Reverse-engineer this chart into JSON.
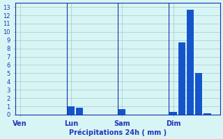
{
  "bars": [
    {
      "x": 1,
      "height": 0.0
    },
    {
      "x": 2,
      "height": 0.0
    },
    {
      "x": 3,
      "height": 0.0
    },
    {
      "x": 4,
      "height": 0.0
    },
    {
      "x": 5,
      "height": 0.0
    },
    {
      "x": 6,
      "height": 0.0
    },
    {
      "x": 7,
      "height": 1.0
    },
    {
      "x": 8,
      "height": 0.8
    },
    {
      "x": 9,
      "height": 0.0
    },
    {
      "x": 10,
      "height": 0.0
    },
    {
      "x": 11,
      "height": 0.0
    },
    {
      "x": 12,
      "height": 0.0
    },
    {
      "x": 13,
      "height": 0.7
    },
    {
      "x": 14,
      "height": 0.0
    },
    {
      "x": 15,
      "height": 0.0
    },
    {
      "x": 16,
      "height": 0.0
    },
    {
      "x": 17,
      "height": 0.0
    },
    {
      "x": 18,
      "height": 0.0
    },
    {
      "x": 19,
      "height": 0.3
    },
    {
      "x": 20,
      "height": 8.7
    },
    {
      "x": 21,
      "height": 12.7
    },
    {
      "x": 22,
      "height": 5.0
    },
    {
      "x": 23,
      "height": 0.2
    },
    {
      "x": 24,
      "height": 0.0
    }
  ],
  "day_ticks": [
    1,
    7,
    13,
    19
  ],
  "day_labels": [
    "Ven",
    "Lun",
    "Sam",
    "Dim"
  ],
  "day_vlines": [
    6.5,
    12.5,
    18.5
  ],
  "ylabel_ticks": [
    0,
    1,
    2,
    3,
    4,
    5,
    6,
    7,
    8,
    9,
    10,
    11,
    12,
    13
  ],
  "ylim": [
    0,
    13.5
  ],
  "xlim": [
    0.5,
    24.5
  ],
  "xlabel": "Précipitations 24h ( mm )",
  "bar_color": "#1555cc",
  "bg_color": "#d8f5f5",
  "grid_color": "#a8c8c8",
  "tick_color": "#2233bb",
  "axis_color": "#1133aa"
}
